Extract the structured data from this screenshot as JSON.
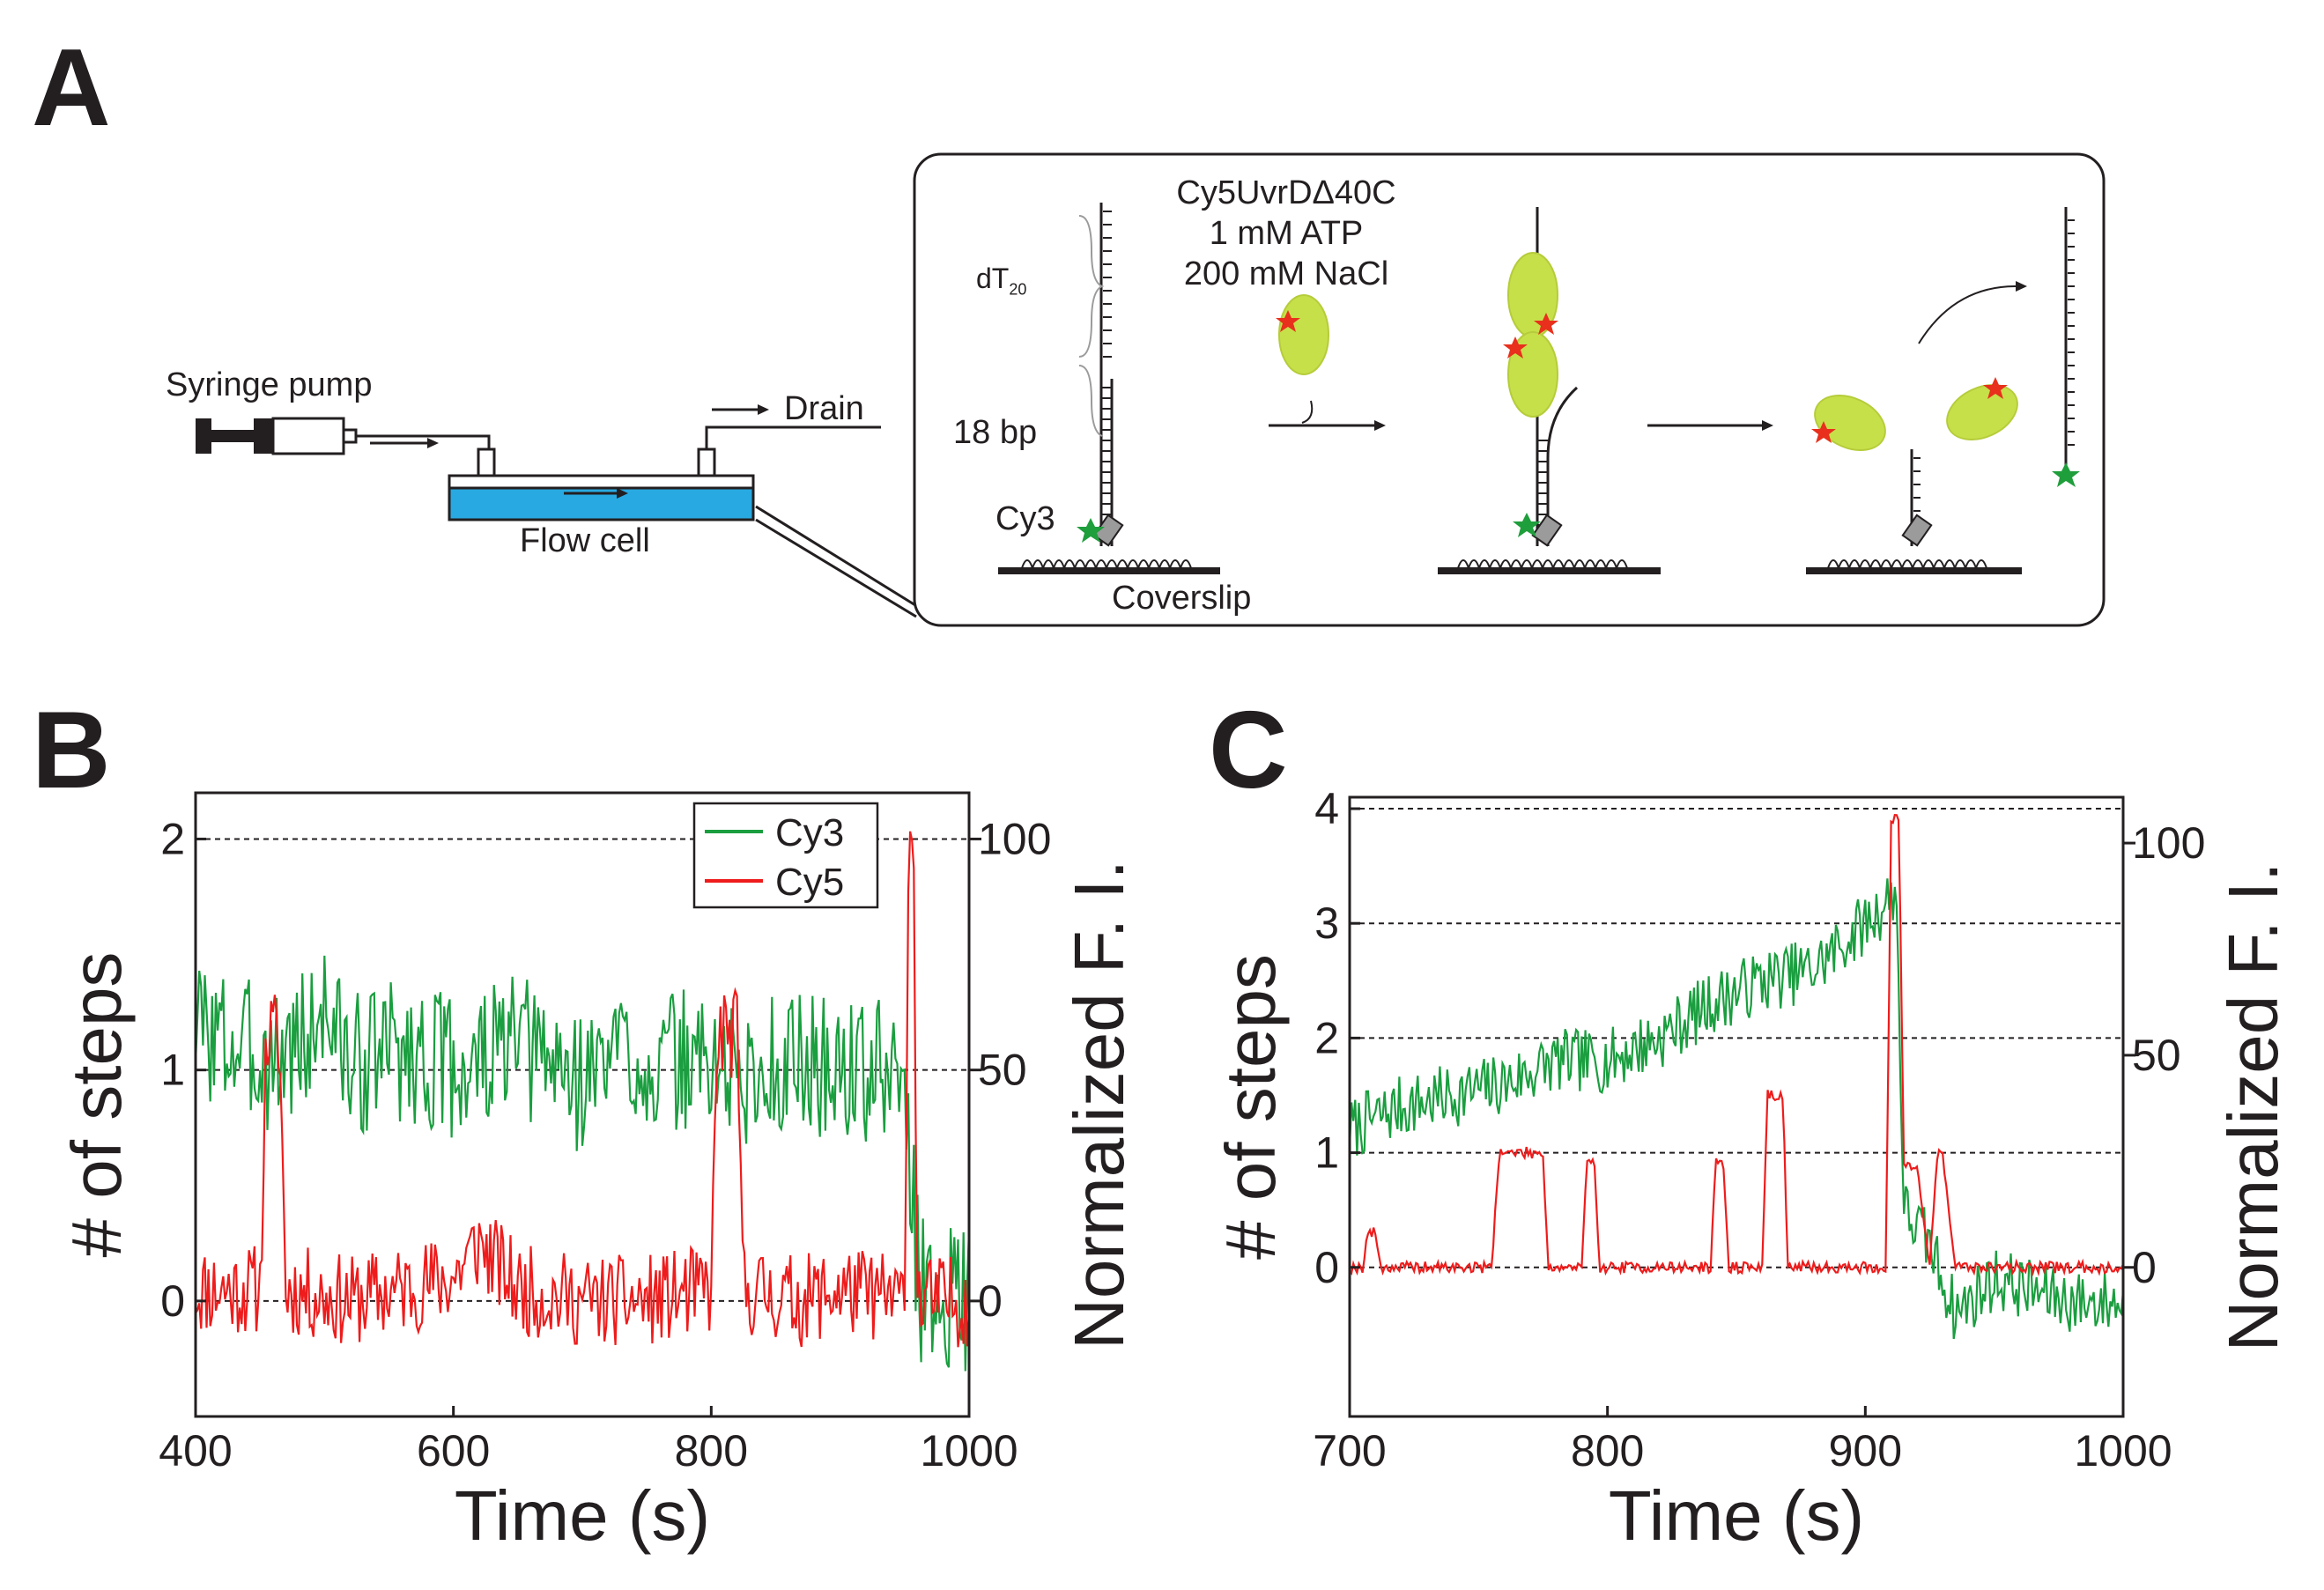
{
  "panels": {
    "a": "A",
    "b": "B",
    "c": "C"
  },
  "panel_a": {
    "syringe_pump": "Syringe pump",
    "drain": "Drain",
    "flow_cell": "Flow cell",
    "coverslip": "Coverslip",
    "dt_label": "dT",
    "dt_subscript": "20",
    "bp_label": "18 bp",
    "cy3_label": "Cy3",
    "condition_line1": "Cy5UvrDΔ40C",
    "condition_line2": "1 mM ATP",
    "condition_line3": "200 mM NaCl",
    "colors": {
      "flow_cell": "#29a9e1",
      "protein": "#c6e04a",
      "cy3_star": "#1f9e3c",
      "cy5_star": "#e8301c"
    }
  },
  "chart_data": [
    {
      "type": "line",
      "panel": "B",
      "xlabel": "Time (s)",
      "ylabel": "# of steps",
      "ylabel_right": "Normalized F. I.",
      "xlim": [
        400,
        1000
      ],
      "ylim": [
        -0.5,
        2.2
      ],
      "x_ticks": [
        400,
        600,
        800,
        1000
      ],
      "y_ticks": [
        0,
        1,
        2
      ],
      "y_ticks_right": [
        {
          "label": "0",
          "steps": 0
        },
        {
          "label": "50",
          "steps": 1
        },
        {
          "label": "100",
          "steps": 2
        }
      ],
      "dashed_lines": [
        0,
        1,
        2
      ],
      "legend": [
        {
          "name": "Cy3",
          "color": "#1a9e3f"
        },
        {
          "name": "Cy5",
          "color": "#ee1c1c"
        }
      ],
      "series": [
        {
          "name": "Cy3",
          "color": "#1a9e3f",
          "x": [
            400,
            430,
            460,
            490,
            500,
            520,
            550,
            580,
            610,
            640,
            670,
            700,
            730,
            760,
            790,
            810,
            830,
            860,
            890,
            920,
            950,
            958,
            962,
            975,
            990,
            1000
          ],
          "y": [
            1.2,
            1.1,
            1.05,
            1.15,
            1.3,
            1.0,
            1.1,
            1.05,
            1.0,
            1.1,
            1.05,
            0.95,
            1.1,
            1.0,
            1.05,
            1.0,
            0.95,
            1.05,
            1.0,
            1.0,
            0.95,
            0.3,
            0.05,
            0.0,
            0.05,
            0.0
          ],
          "noise": 0.32,
          "seed": 3
        },
        {
          "name": "Cy5",
          "color": "#ee1c1c",
          "x": [
            400,
            450,
            455,
            465,
            470,
            520,
            560,
            600,
            620,
            650,
            700,
            750,
            800,
            805,
            820,
            825,
            870,
            900,
            950,
            953,
            957,
            960,
            1000
          ],
          "y": [
            0.05,
            0.05,
            1.15,
            1.15,
            0.05,
            0.0,
            0.05,
            0.1,
            0.25,
            0.05,
            0.0,
            0.0,
            0.05,
            1.15,
            1.15,
            0.05,
            0.0,
            0.05,
            0.0,
            2.0,
            2.0,
            0.0,
            0.0
          ],
          "noise": 0.2,
          "seed": 11
        }
      ]
    },
    {
      "type": "line",
      "panel": "C",
      "xlabel": "Time (s)",
      "ylabel": "# of steps",
      "ylabel_right": "Normalized F. I.",
      "xlim": [
        700,
        1000
      ],
      "ylim": [
        -1.3,
        4.1
      ],
      "x_ticks": [
        700,
        800,
        900,
        1000
      ],
      "y_ticks": [
        0,
        1,
        2,
        3,
        4
      ],
      "y_ticks_right": [
        {
          "label": "0",
          "steps": 0
        },
        {
          "label": "50",
          "steps": 1.85
        },
        {
          "label": "100",
          "steps": 3.7
        }
      ],
      "dashed_lines": [
        0,
        1,
        2,
        3,
        4
      ],
      "series": [
        {
          "name": "Cy3",
          "color": "#1a9e3f",
          "x": [
            700,
            720,
            740,
            760,
            780,
            800,
            820,
            840,
            860,
            880,
            895,
            905,
            912,
            915,
            925,
            935,
            950,
            965,
            980,
            1000
          ],
          "y": [
            1.2,
            1.4,
            1.5,
            1.6,
            1.8,
            1.8,
            2.0,
            2.3,
            2.5,
            2.6,
            2.9,
            3.1,
            3.3,
            0.5,
            0.2,
            -0.4,
            -0.1,
            -0.2,
            -0.3,
            -0.3
          ],
          "noise": 0.28,
          "seed": 7
        },
        {
          "name": "Cy5",
          "color": "#ee1c1c",
          "x": [
            700,
            705,
            707,
            710,
            712,
            755,
            758,
            775,
            777,
            790,
            792,
            795,
            797,
            840,
            842,
            845,
            847,
            860,
            862,
            868,
            870,
            880,
            882,
            908,
            910,
            913,
            915,
            920,
            925,
            928,
            930,
            935,
            1000
          ],
          "y": [
            0.0,
            0.0,
            0.3,
            0.3,
            0.0,
            0.0,
            1.0,
            1.0,
            0.0,
            0.0,
            0.9,
            0.9,
            0.0,
            0.0,
            0.9,
            0.9,
            0.0,
            0.0,
            1.5,
            1.5,
            0.0,
            0.0,
            0.0,
            0.0,
            3.9,
            3.9,
            0.9,
            0.9,
            0.0,
            1.0,
            1.0,
            0.0,
            0.0
          ],
          "noise": 0.05,
          "seed": 19
        }
      ]
    }
  ]
}
